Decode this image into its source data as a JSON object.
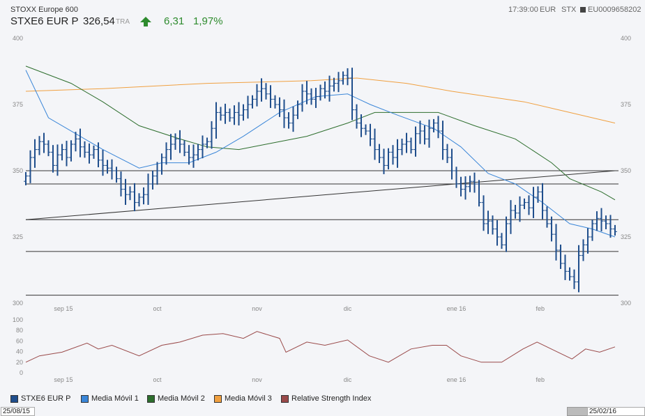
{
  "header": {
    "subtitle": "STOXX Europe 600",
    "symbol": "STXE6 EUR P",
    "price": "326,54",
    "exchange": "TRA",
    "change": "6,31",
    "change_pct": "1,97%",
    "time": "17:39:00",
    "currency": "EUR",
    "market": "STX",
    "isin": "EU0009658202",
    "trend_icon": "arrow-up-icon"
  },
  "colors": {
    "price": "#1f4e8c",
    "ma1": "#3a86d8",
    "ma2": "#2d6e2d",
    "ma3": "#f0a040",
    "rsi": "#9a4a4a",
    "up": "#2e8b2e"
  },
  "chart_data": {
    "type": "ohlc",
    "price_axis": {
      "min": 300,
      "max": 400,
      "ticks": [
        "300",
        "325",
        "350",
        "375",
        "400"
      ]
    },
    "rsi_axis": {
      "min": 0,
      "max": 100,
      "ticks": [
        "0",
        "20",
        "40",
        "60",
        "80",
        "100"
      ]
    },
    "months": [
      {
        "label": "sep 15",
        "idx": 8.3
      },
      {
        "label": "oct",
        "idx": 29
      },
      {
        "label": "nov",
        "idx": 51
      },
      {
        "label": "dic",
        "idx": 71
      },
      {
        "label": "ene 16",
        "idx": 95
      },
      {
        "label": "feb",
        "idx": 113.5
      }
    ],
    "closes": [
      348,
      355,
      358,
      361,
      360,
      357,
      352,
      356,
      358,
      355,
      360,
      362,
      359,
      357,
      356,
      358,
      354,
      352,
      351,
      350,
      347,
      343,
      341,
      342,
      338,
      340,
      341,
      345,
      348,
      350,
      355,
      358,
      360,
      362,
      360,
      357,
      355,
      356,
      358,
      360,
      361,
      366,
      372,
      371,
      372,
      370,
      372,
      371,
      373,
      375,
      377,
      380,
      381,
      379,
      377,
      375,
      373,
      370,
      368,
      371,
      375,
      380,
      379,
      377,
      378,
      381,
      380,
      382,
      383,
      384,
      386,
      385,
      373,
      368,
      366,
      365,
      362,
      358,
      355,
      352,
      357,
      355,
      358,
      360,
      361,
      358,
      364,
      365,
      362,
      366,
      368,
      365,
      358,
      355,
      350,
      345,
      343,
      344,
      346,
      345,
      338,
      330,
      331,
      328,
      325,
      322,
      330,
      335,
      334,
      337,
      338,
      336,
      340,
      342,
      335,
      330,
      326,
      320,
      315,
      312,
      310,
      308,
      318,
      322,
      325,
      330,
      332,
      331,
      330,
      328,
      327
    ],
    "ma1": [
      [
        0,
        388
      ],
      [
        5,
        370
      ],
      [
        11,
        364
      ],
      [
        17,
        358
      ],
      [
        25,
        351
      ],
      [
        30,
        353
      ],
      [
        36,
        353
      ],
      [
        42,
        357
      ],
      [
        48,
        363
      ],
      [
        56,
        372
      ],
      [
        64,
        378
      ],
      [
        71,
        379
      ],
      [
        76,
        375
      ],
      [
        82,
        371
      ],
      [
        90,
        366
      ],
      [
        96,
        359
      ],
      [
        102,
        349
      ],
      [
        108,
        345
      ],
      [
        114,
        338
      ],
      [
        120,
        330
      ],
      [
        125,
        328
      ],
      [
        130,
        325
      ]
    ],
    "ma2": [
      [
        0,
        389.5
      ],
      [
        10,
        383
      ],
      [
        17,
        376
      ],
      [
        25,
        367
      ],
      [
        34,
        362
      ],
      [
        40,
        359
      ],
      [
        47,
        358
      ],
      [
        53,
        360
      ],
      [
        62,
        363
      ],
      [
        71,
        368
      ],
      [
        77,
        372
      ],
      [
        84,
        372
      ],
      [
        91,
        372
      ],
      [
        99,
        367
      ],
      [
        108,
        362
      ],
      [
        116,
        353
      ],
      [
        120,
        347
      ],
      [
        127,
        342
      ],
      [
        130,
        339
      ]
    ],
    "ma3": [
      [
        0,
        380
      ],
      [
        17,
        381
      ],
      [
        40,
        383
      ],
      [
        63,
        384
      ],
      [
        73,
        385
      ],
      [
        84,
        383
      ],
      [
        94,
        380
      ],
      [
        110,
        376
      ],
      [
        120,
        372
      ],
      [
        130,
        368
      ]
    ],
    "hlines": [
      350,
      345,
      331.5,
      319.5,
      303
    ],
    "trendline": [
      [
        0,
        331.5
      ],
      [
        130,
        350
      ]
    ],
    "rsi": [
      [
        0,
        20
      ],
      [
        3,
        32
      ],
      [
        8,
        39
      ],
      [
        13.5,
        56
      ],
      [
        16,
        45
      ],
      [
        19,
        52
      ],
      [
        25,
        32
      ],
      [
        30,
        52
      ],
      [
        34,
        58
      ],
      [
        39,
        71
      ],
      [
        43.5,
        74
      ],
      [
        48,
        65
      ],
      [
        51,
        78
      ],
      [
        56,
        65
      ],
      [
        57.4,
        39
      ],
      [
        62,
        58
      ],
      [
        66,
        52
      ],
      [
        71,
        62
      ],
      [
        75.8,
        32
      ],
      [
        80,
        20
      ],
      [
        85,
        45
      ],
      [
        89.7,
        52
      ],
      [
        92.8,
        52
      ],
      [
        96,
        32
      ],
      [
        100.5,
        20
      ],
      [
        105,
        20
      ],
      [
        109.7,
        45
      ],
      [
        112.8,
        58
      ],
      [
        117.4,
        39
      ],
      [
        120.5,
        26
      ],
      [
        123.5,
        45
      ],
      [
        126.6,
        39
      ],
      [
        130,
        49
      ]
    ]
  },
  "legend": [
    {
      "label": "STXE6 EUR P",
      "color": "#1f4e8c"
    },
    {
      "label": "Media Móvil 1",
      "color": "#3a86d8"
    },
    {
      "label": "Media Móvil 2",
      "color": "#2d6e2d"
    },
    {
      "label": "Media Móvil 3",
      "color": "#f0a040"
    },
    {
      "label": "Relative Strength Index",
      "color": "#9a4a4a"
    }
  ],
  "range": {
    "start": "25/08/15",
    "end": "25/02/16"
  }
}
